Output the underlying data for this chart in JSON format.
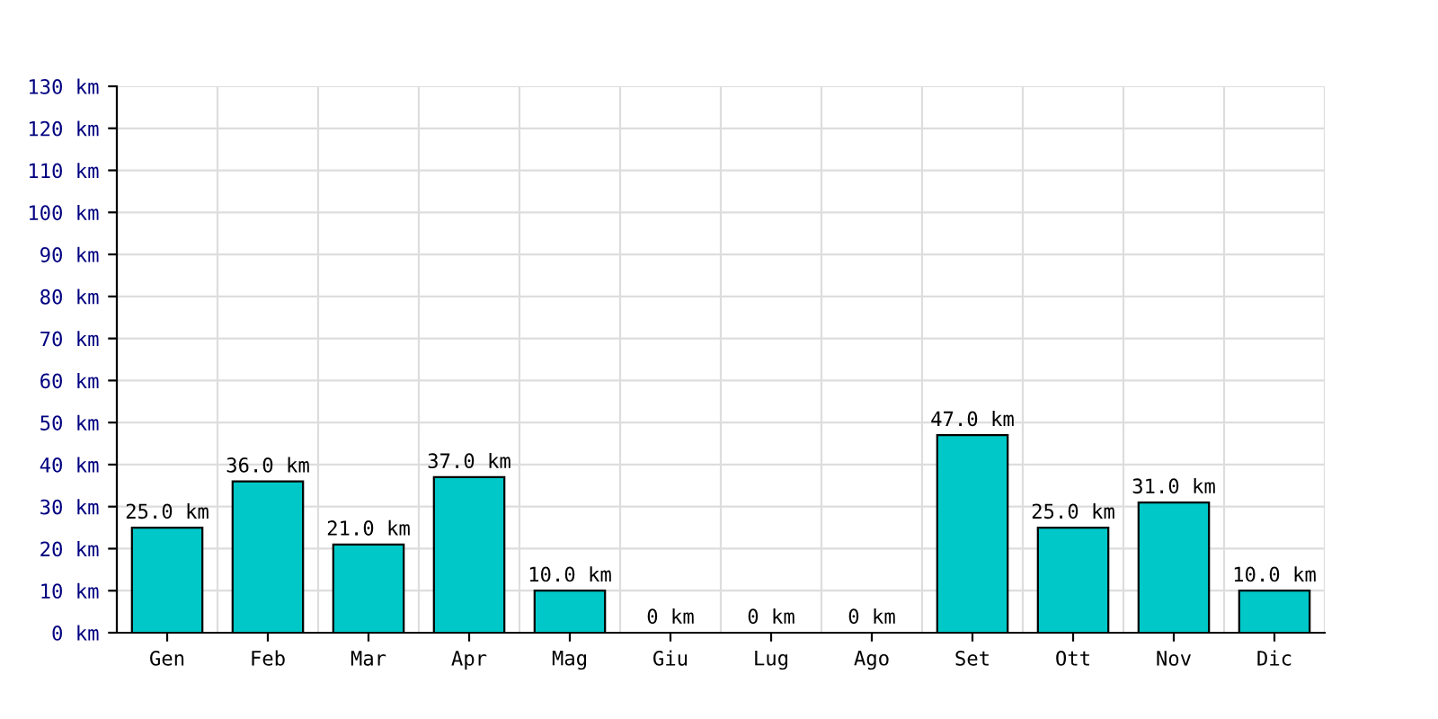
{
  "chart_data": {
    "type": "bar",
    "categories": [
      "Gen",
      "Feb",
      "Mar",
      "Apr",
      "Mag",
      "Giu",
      "Lug",
      "Ago",
      "Set",
      "Ott",
      "Nov",
      "Dic"
    ],
    "values": [
      25,
      36,
      21,
      37,
      10,
      0,
      0,
      0,
      47,
      25,
      31,
      10
    ],
    "value_labels": [
      "25.0 km",
      "36.0 km",
      "21.0 km",
      "37.0 km",
      "10.0 km",
      "0 km",
      "0 km",
      "0 km",
      "47.0 km",
      "25.0 km",
      "31.0 km",
      "10.0 km"
    ],
    "color": "#00c8c8",
    "ylim": [
      0,
      130
    ],
    "yticks": [
      {
        "value": 0,
        "label": "0 km"
      },
      {
        "value": 10,
        "label": "10 km"
      },
      {
        "value": 20,
        "label": "20 km"
      },
      {
        "value": 30,
        "label": "30 km"
      },
      {
        "value": 40,
        "label": "40 km"
      },
      {
        "value": 50,
        "label": "50 km"
      },
      {
        "value": 60,
        "label": "60 km"
      },
      {
        "value": 70,
        "label": "70 km"
      },
      {
        "value": 80,
        "label": "80 km"
      },
      {
        "value": 90,
        "label": "90 km"
      },
      {
        "value": 100,
        "label": "100 km"
      },
      {
        "value": 110,
        "label": "110 km"
      },
      {
        "value": 120,
        "label": "120 km"
      },
      {
        "value": 130,
        "label": "130 km"
      }
    ],
    "grid": true
  }
}
